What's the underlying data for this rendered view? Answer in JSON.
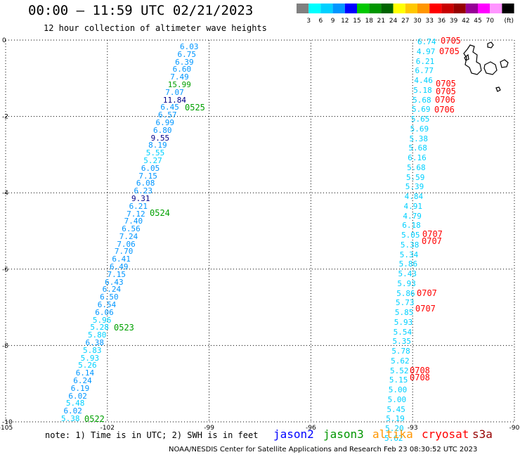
{
  "header": {
    "title": "00:00 – 11:59 UTC 02/21/2023",
    "subtitle": "12 hour collection of altimeter wave heights"
  },
  "legend": {
    "unit_label": "(ft)",
    "bins": [
      {
        "label": "",
        "color": "#808080"
      },
      {
        "label": "3",
        "color": "#00ffff"
      },
      {
        "label": "6",
        "color": "#00d0ff"
      },
      {
        "label": "9",
        "color": "#0096ff"
      },
      {
        "label": "12",
        "color": "#0000ff"
      },
      {
        "label": "15",
        "color": "#00c800"
      },
      {
        "label": "18",
        "color": "#009600"
      },
      {
        "label": "21",
        "color": "#006400"
      },
      {
        "label": "24",
        "color": "#ffff00"
      },
      {
        "label": "27",
        "color": "#ffc800"
      },
      {
        "label": "30",
        "color": "#ff9600"
      },
      {
        "label": "33",
        "color": "#ff0000"
      },
      {
        "label": "36",
        "color": "#c80000"
      },
      {
        "label": "39",
        "color": "#960000"
      },
      {
        "label": "42",
        "color": "#960096"
      },
      {
        "label": "45",
        "color": "#ff00ff"
      },
      {
        "label": "70",
        "color": "#ff96ff"
      },
      {
        "label": "",
        "color": "#000000"
      }
    ]
  },
  "axes": {
    "lon_ticks": [
      "-105",
      "-102",
      "-99",
      "-96",
      "-93",
      "-90"
    ],
    "lat_ticks": [
      "0",
      "-2",
      "-4",
      "-6",
      "-8",
      "-10"
    ]
  },
  "colors": {
    "jason2": "#0000ff",
    "jason3": "#009600",
    "altika": "#ff9600",
    "cryosat": "#ff0000",
    "s3a": "#960000",
    "cyan": "#00d0ff",
    "light_blue": "#0096ff",
    "navy": "#00008b",
    "green": "#00a000"
  },
  "tracks": {
    "jason3_track_values": [
      "6.03",
      "6.75",
      "6.39",
      "6.60",
      "7.49",
      "15.99",
      "7.07",
      "11.84",
      "6.45",
      "6.57",
      "6.99",
      "6.80",
      "9.55",
      "8.19",
      "5.55",
      "5.27",
      "6.05",
      "7.15",
      "6.08",
      "6.23",
      "9.31",
      "6.21",
      "7.12",
      "7.40",
      "6.56",
      "7.24",
      "7.06",
      "7.70",
      "6.41",
      "6.49",
      "7.15",
      "6.43",
      "6.24",
      "6.50",
      "6.54",
      "6.06",
      "5.96",
      "5.28",
      "5.80",
      "6.38",
      "5.83",
      "5.93",
      "5.26",
      "6.14",
      "6.24",
      "6.19",
      "6.02",
      "5.48",
      "6.02",
      "5.38"
    ],
    "jason3_times": [
      "0525",
      "0524",
      "0523",
      "0522"
    ],
    "right_track_values": [
      "6.74",
      "4.97",
      "6.21",
      "6.77",
      "4.46",
      "5.18",
      "5.68",
      "5.69",
      "5.65",
      "5.69",
      "5.38",
      "5.68",
      "6.16",
      "5.68",
      "5.59",
      "5.39",
      "4.84",
      "4.91",
      "4.79",
      "6.18",
      "5.05",
      "5.38",
      "5.34",
      "5.86",
      "5.43",
      "5.93",
      "5.86",
      "5.73",
      "5.85",
      "5.93",
      "5.54",
      "5.35",
      "5.78",
      "5.62",
      "5.52",
      "5.15",
      "5.00",
      "5.00",
      "5.45",
      "5.19",
      "5.20",
      "5.62"
    ],
    "cryosat_times": [
      "0705",
      "0705",
      "0705",
      "0705",
      "0706",
      "0706",
      "0707",
      "0707",
      "0707",
      "0707",
      "0708",
      "0708"
    ]
  },
  "footer": {
    "note": "note: 1) Time is in UTC; 2) SWH is in feet",
    "satellites": [
      "jason2",
      "jason3",
      "altika",
      "cryosat",
      "s3a"
    ],
    "credit": "NOAA/NESDIS Center for Satellite Applications and Research    Feb 23 08:30:52 UTC 2023"
  }
}
